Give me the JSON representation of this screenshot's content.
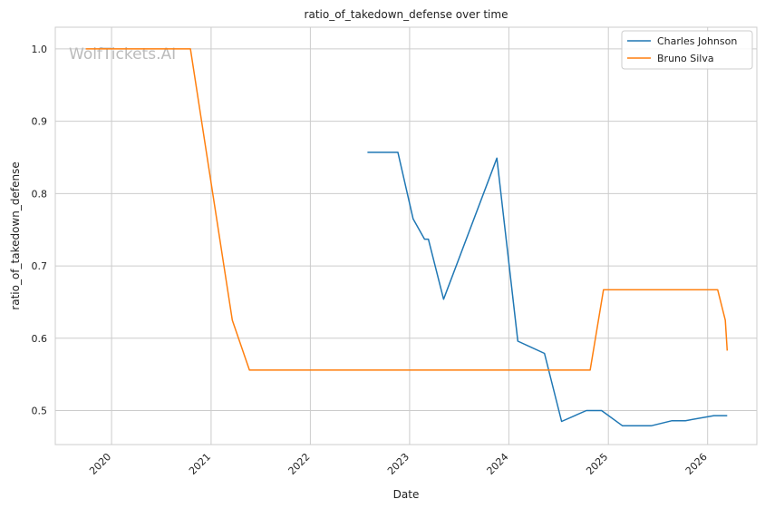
{
  "chart_data": {
    "type": "line",
    "title": "ratio_of_takedown_defense over time",
    "xlabel": "Date",
    "ylabel": "ratio_of_takedown_defense",
    "watermark": "WolfTickets.AI",
    "xlim": [
      "2019-06-08",
      "2026-07-01"
    ],
    "ylim": [
      0.453,
      1.03
    ],
    "grid": true,
    "legend_position": "top-right",
    "x_ticks": [
      "2020-01-01",
      "2021-01-01",
      "2022-01-01",
      "2023-01-01",
      "2024-01-01",
      "2025-01-01",
      "2026-01-01"
    ],
    "x_tick_labels": [
      "2020",
      "2021",
      "2022",
      "2023",
      "2024",
      "2025",
      "2026"
    ],
    "y_ticks": [
      0.5,
      0.6,
      0.7,
      0.8,
      0.9,
      1.0
    ],
    "y_tick_labels": [
      "0.5",
      "0.6",
      "0.7",
      "0.8",
      "0.9",
      "1.0"
    ],
    "series": [
      {
        "name": "Charles Johnson",
        "color": "#1f77b4",
        "points": [
          [
            "2022-07-30",
            0.857
          ],
          [
            "2022-11-19",
            0.857
          ],
          [
            "2023-01-14",
            0.765
          ],
          [
            "2023-02-25",
            0.737
          ],
          [
            "2023-03-11",
            0.737
          ],
          [
            "2023-05-06",
            0.654
          ],
          [
            "2023-11-18",
            0.849
          ],
          [
            "2024-02-03",
            0.596
          ],
          [
            "2024-05-11",
            0.579
          ],
          [
            "2024-07-13",
            0.485
          ],
          [
            "2024-10-12",
            0.5
          ],
          [
            "2024-12-07",
            0.5
          ],
          [
            "2025-02-22",
            0.479
          ],
          [
            "2025-06-07",
            0.479
          ],
          [
            "2025-08-23",
            0.486
          ],
          [
            "2025-10-11",
            0.486
          ],
          [
            "2026-01-24",
            0.493
          ],
          [
            "2026-03-14",
            0.493
          ]
        ]
      },
      {
        "name": "Bruno Silva",
        "color": "#ff7f0e",
        "points": [
          [
            "2019-09-28",
            1.0
          ],
          [
            "2020-10-17",
            1.0
          ],
          [
            "2021-03-20",
            0.625
          ],
          [
            "2021-05-22",
            0.556
          ],
          [
            "2024-10-26",
            0.556
          ],
          [
            "2024-12-14",
            0.667
          ],
          [
            "2026-02-07",
            0.667
          ],
          [
            "2026-03-07",
            0.625
          ],
          [
            "2026-03-14",
            0.583
          ]
        ]
      }
    ]
  }
}
